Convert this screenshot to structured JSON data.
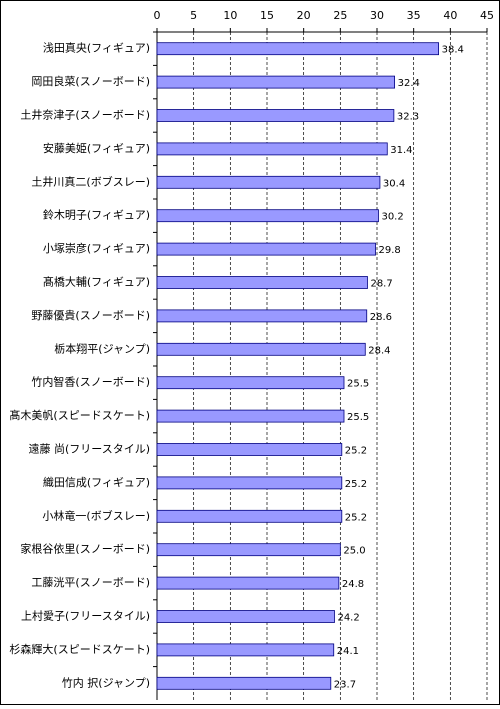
{
  "chart_data": {
    "type": "bar",
    "orientation": "horizontal",
    "categories": [
      "浅田真央(フィギュア)",
      "岡田良菜(スノーボード)",
      "土井奈津子(スノーボード)",
      "安藤美姫(フィギュア)",
      "土井川真二(ボブスレー)",
      "鈴木明子(フィギュア)",
      "小塚崇彦(フィギュア)",
      "髙橋大輔(フィギュア)",
      "野藤優貴(スノーボード)",
      "栃本翔平(ジャンプ)",
      "竹内智香(スノーボード)",
      "髙木美帆(スピードスケート)",
      "遠藤 尚(フリースタイル)",
      "織田信成(フィギュア)",
      "小林竜一(ボブスレー)",
      "家根谷依里(スノーボード)",
      "工藤洸平(スノーボード)",
      "上村愛子(フリースタイル)",
      "杉森輝大(スピードスケート)",
      "竹内 択(ジャンプ)"
    ],
    "values": [
      38.4,
      32.4,
      32.3,
      31.4,
      30.4,
      30.2,
      29.8,
      28.7,
      28.6,
      28.4,
      25.5,
      25.5,
      25.2,
      25.2,
      25.2,
      25.0,
      24.8,
      24.2,
      24.1,
      23.7
    ],
    "value_labels": [
      "38.4",
      "32.4",
      "32.3",
      "31.4",
      "30.4",
      "30.2",
      "29.8",
      "28.7",
      "28.6",
      "28.4",
      "25.5",
      "25.5",
      "25.2",
      "25.2",
      "25.2",
      "25.0",
      "24.8",
      "24.2",
      "24.1",
      "23.7"
    ],
    "color": "#9999ff",
    "xlim": [
      0,
      45
    ],
    "xticks": [
      0,
      5,
      10,
      15,
      20,
      25,
      30,
      35,
      40,
      45
    ],
    "grid": true
  }
}
